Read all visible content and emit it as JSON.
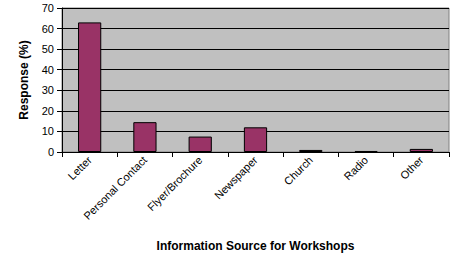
{
  "chart_data": {
    "type": "bar",
    "categories": [
      "Letter",
      "Personal Contact",
      "Flyer/Brochure",
      "Newspaper",
      "Church",
      "Radio",
      "Other"
    ],
    "values": [
      63,
      14.5,
      7.5,
      12,
      1,
      0.5,
      1.5
    ],
    "color": "#993366",
    "x_label": "Information Source for Workshops",
    "y_label": "Response (%)",
    "ylim": [
      0,
      70
    ],
    "yticks": [
      0,
      10,
      20,
      30,
      40,
      50,
      60,
      70
    ],
    "grid": true
  }
}
